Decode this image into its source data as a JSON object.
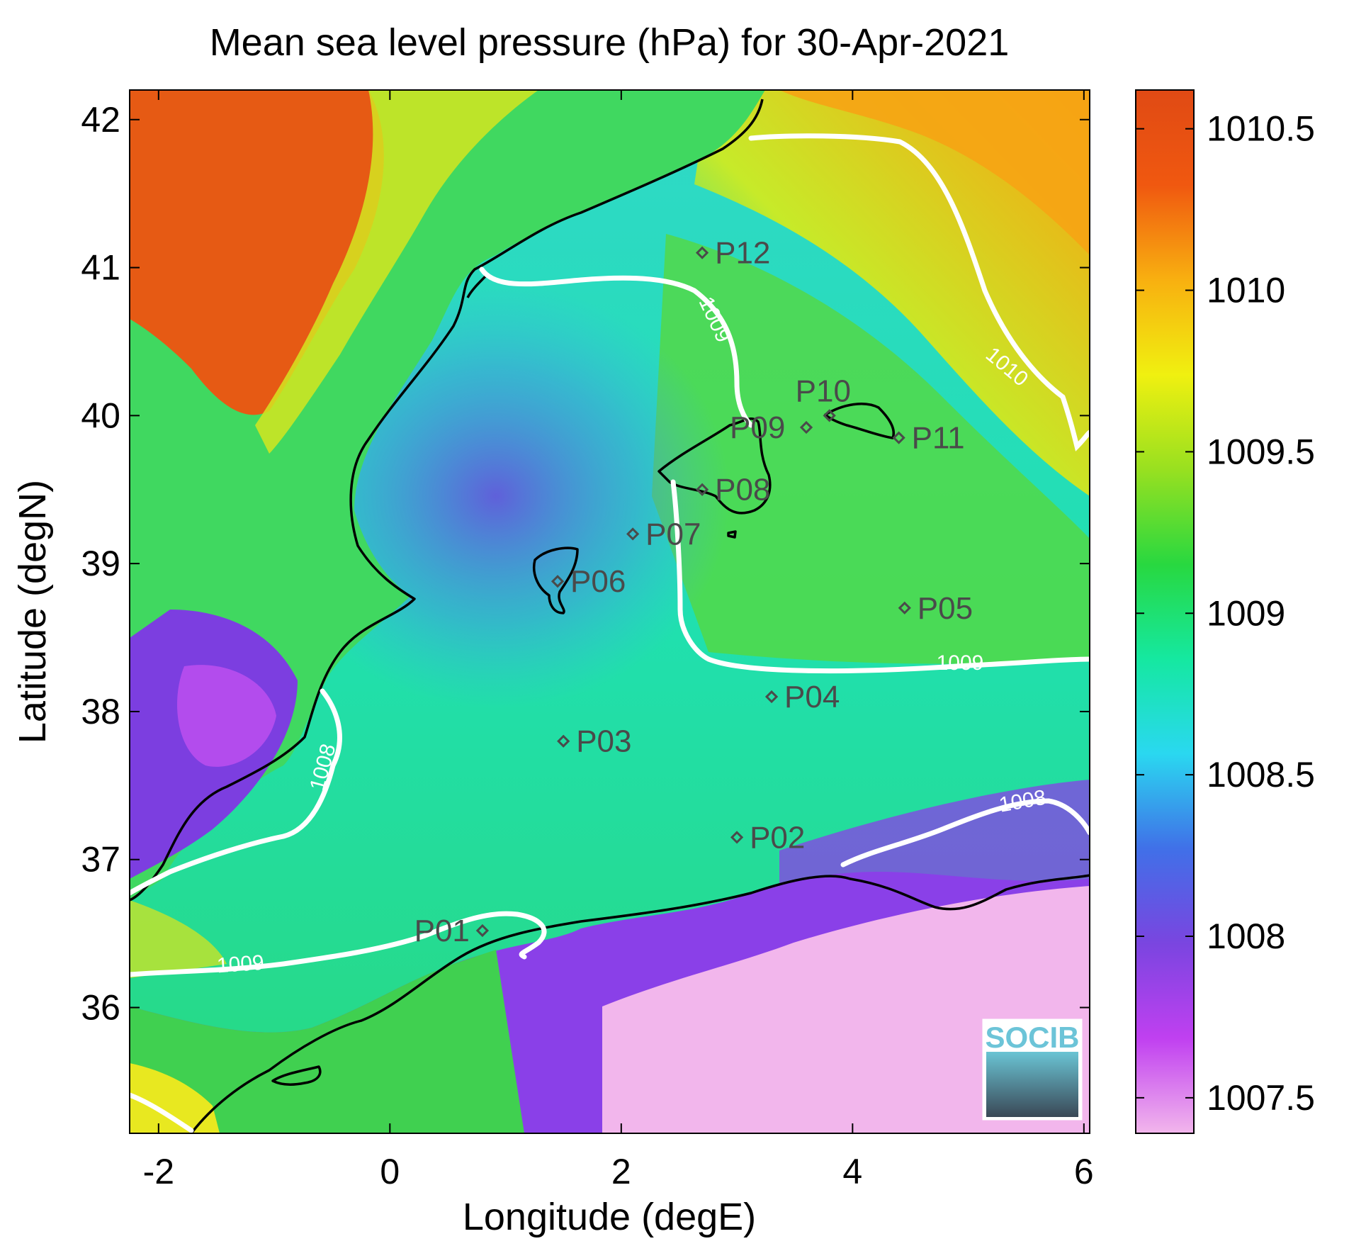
{
  "title": "Mean sea level pressure (hPa) for 30-Apr-2021",
  "x_axis": {
    "label": "Longitude (degE)",
    "range": [
      -2.25,
      6.05
    ],
    "ticks": [
      {
        "value": -2,
        "label": "-2"
      },
      {
        "value": 0,
        "label": "0"
      },
      {
        "value": 2,
        "label": "2"
      },
      {
        "value": 4,
        "label": "4"
      },
      {
        "value": 6,
        "label": "6"
      }
    ]
  },
  "y_axis": {
    "label": "Latitude (degN)",
    "range": [
      35.15,
      42.2
    ],
    "ticks": [
      {
        "value": 36,
        "label": "36"
      },
      {
        "value": 37,
        "label": "37"
      },
      {
        "value": 38,
        "label": "38"
      },
      {
        "value": 39,
        "label": "39"
      },
      {
        "value": 40,
        "label": "40"
      },
      {
        "value": 41,
        "label": "41"
      },
      {
        "value": 42,
        "label": "42"
      }
    ]
  },
  "colorbar": {
    "range": [
      1007.39,
      1010.62
    ],
    "ticks": [
      {
        "value": 1007.5,
        "label": "1007.5"
      },
      {
        "value": 1008,
        "label": "1008"
      },
      {
        "value": 1008.5,
        "label": "1008.5"
      },
      {
        "value": 1009,
        "label": "1009"
      },
      {
        "value": 1009.5,
        "label": "1009.5"
      },
      {
        "value": 1010,
        "label": "1010"
      },
      {
        "value": 1010.5,
        "label": "1010.5"
      }
    ],
    "colors": [
      "#f2b6ec",
      "#c040f0",
      "#7a45e0",
      "#4070e8",
      "#2ad8f0",
      "#15e8a0",
      "#28d840",
      "#98e020",
      "#f0f010",
      "#f8b010",
      "#f05810",
      "#e04a14"
    ]
  },
  "stations": [
    {
      "label": "P01",
      "lon": 0.8,
      "lat": 36.52
    },
    {
      "label": "P02",
      "lon": 3.0,
      "lat": 37.15
    },
    {
      "label": "P03",
      "lon": 1.5,
      "lat": 37.8
    },
    {
      "label": "P04",
      "lon": 3.3,
      "lat": 38.1
    },
    {
      "label": "P05",
      "lon": 4.45,
      "lat": 38.7
    },
    {
      "label": "P06",
      "lon": 1.45,
      "lat": 38.88
    },
    {
      "label": "P07",
      "lon": 2.1,
      "lat": 39.2
    },
    {
      "label": "P08",
      "lon": 2.7,
      "lat": 39.5
    },
    {
      "label": "P09",
      "lon": 3.6,
      "lat": 39.92
    },
    {
      "label": "P10",
      "lon": 3.8,
      "lat": 40.0
    },
    {
      "label": "P11",
      "lon": 4.4,
      "lat": 39.85
    },
    {
      "label": "P12",
      "lon": 2.7,
      "lat": 41.1
    }
  ],
  "contour_labels": [
    "1009",
    "1010",
    "1009",
    "1008",
    "1008",
    "1009"
  ],
  "logo_text": "SOCIB",
  "colors": {
    "coastline": "#000000",
    "contour": "#ffffff",
    "station_marker": "#4a4a4a",
    "logo_text": "#6cc4d8",
    "logo_dark": "#3c4a58"
  }
}
